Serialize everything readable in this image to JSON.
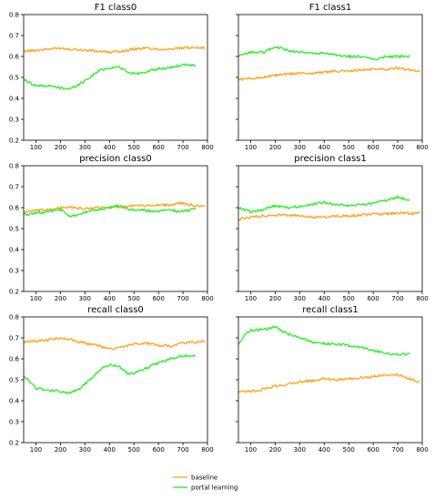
{
  "chart_data": [
    {
      "type": "line",
      "title": "F1 class0",
      "xlim": [
        50,
        800
      ],
      "ylim": [
        0.2,
        0.8
      ],
      "x_ticks": [
        100,
        200,
        300,
        400,
        500,
        600,
        700,
        800
      ],
      "y_ticks": [
        0.2,
        0.3,
        0.4,
        0.5,
        0.6,
        0.7,
        0.8
      ],
      "y_tick_labels_shown": true,
      "series": [
        {
          "name": "baseline",
          "color": "#ffa726",
          "x_start": 50,
          "x_end": 790,
          "points": [
            [
              50,
              0.625
            ],
            [
              100,
              0.63
            ],
            [
              150,
              0.635
            ],
            [
              200,
              0.64
            ],
            [
              250,
              0.635
            ],
            [
              300,
              0.63
            ],
            [
              350,
              0.625
            ],
            [
              400,
              0.62
            ],
            [
              450,
              0.625
            ],
            [
              500,
              0.635
            ],
            [
              550,
              0.64
            ],
            [
              600,
              0.635
            ],
            [
              650,
              0.635
            ],
            [
              700,
              0.64
            ],
            [
              750,
              0.645
            ],
            [
              790,
              0.64
            ]
          ]
        },
        {
          "name": "portal learning",
          "color": "#33ee33",
          "x_start": 50,
          "x_end": 750,
          "points": [
            [
              50,
              0.49
            ],
            [
              100,
              0.46
            ],
            [
              150,
              0.46
            ],
            [
              200,
              0.45
            ],
            [
              240,
              0.445
            ],
            [
              280,
              0.47
            ],
            [
              320,
              0.5
            ],
            [
              360,
              0.535
            ],
            [
              400,
              0.545
            ],
            [
              440,
              0.55
            ],
            [
              480,
              0.52
            ],
            [
              520,
              0.52
            ],
            [
              560,
              0.53
            ],
            [
              600,
              0.54
            ],
            [
              640,
              0.545
            ],
            [
              680,
              0.555
            ],
            [
              720,
              0.56
            ],
            [
              750,
              0.56
            ]
          ]
        }
      ]
    },
    {
      "type": "line",
      "title": "F1 class1",
      "xlim": [
        50,
        800
      ],
      "ylim": [
        0.2,
        0.8
      ],
      "x_ticks": [
        100,
        200,
        300,
        400,
        500,
        600,
        700,
        800
      ],
      "y_ticks": [
        0.2,
        0.3,
        0.4,
        0.5,
        0.6,
        0.7,
        0.8
      ],
      "y_tick_labels_shown": false,
      "series": [
        {
          "name": "baseline",
          "color": "#ffa726",
          "x_start": 50,
          "x_end": 790,
          "points": [
            [
              50,
              0.49
            ],
            [
              100,
              0.495
            ],
            [
              150,
              0.5
            ],
            [
              200,
              0.51
            ],
            [
              250,
              0.515
            ],
            [
              300,
              0.52
            ],
            [
              350,
              0.52
            ],
            [
              400,
              0.525
            ],
            [
              450,
              0.53
            ],
            [
              500,
              0.53
            ],
            [
              550,
              0.535
            ],
            [
              600,
              0.54
            ],
            [
              650,
              0.54
            ],
            [
              700,
              0.545
            ],
            [
              750,
              0.535
            ],
            [
              790,
              0.53
            ]
          ]
        },
        {
          "name": "portal learning",
          "color": "#33ee33",
          "x_start": 50,
          "x_end": 750,
          "points": [
            [
              50,
              0.6
            ],
            [
              100,
              0.62
            ],
            [
              150,
              0.62
            ],
            [
              200,
              0.645
            ],
            [
              250,
              0.63
            ],
            [
              300,
              0.62
            ],
            [
              350,
              0.615
            ],
            [
              400,
              0.615
            ],
            [
              450,
              0.605
            ],
            [
              500,
              0.6
            ],
            [
              550,
              0.6
            ],
            [
              600,
              0.585
            ],
            [
              650,
              0.6
            ],
            [
              700,
              0.6
            ],
            [
              750,
              0.6
            ]
          ]
        }
      ]
    },
    {
      "type": "line",
      "title": "precision class0",
      "xlim": [
        50,
        800
      ],
      "ylim": [
        0.2,
        0.8
      ],
      "x_ticks": [
        100,
        200,
        300,
        400,
        500,
        600,
        700,
        800
      ],
      "y_ticks": [
        0.2,
        0.3,
        0.4,
        0.5,
        0.6,
        0.7,
        0.8
      ],
      "y_tick_labels_shown": true,
      "series": [
        {
          "name": "baseline",
          "color": "#ffa726",
          "x_start": 50,
          "x_end": 790,
          "points": [
            [
              50,
              0.58
            ],
            [
              100,
              0.585
            ],
            [
              150,
              0.59
            ],
            [
              200,
              0.6
            ],
            [
              250,
              0.6
            ],
            [
              300,
              0.595
            ],
            [
              350,
              0.6
            ],
            [
              400,
              0.6
            ],
            [
              450,
              0.605
            ],
            [
              500,
              0.61
            ],
            [
              550,
              0.61
            ],
            [
              600,
              0.61
            ],
            [
              650,
              0.615
            ],
            [
              700,
              0.62
            ],
            [
              750,
              0.61
            ],
            [
              790,
              0.605
            ]
          ]
        },
        {
          "name": "portal learning",
          "color": "#33ee33",
          "x_start": 50,
          "x_end": 750,
          "points": [
            [
              50,
              0.565
            ],
            [
              100,
              0.575
            ],
            [
              150,
              0.58
            ],
            [
              200,
              0.59
            ],
            [
              240,
              0.555
            ],
            [
              280,
              0.57
            ],
            [
              320,
              0.585
            ],
            [
              360,
              0.59
            ],
            [
              400,
              0.6
            ],
            [
              440,
              0.61
            ],
            [
              480,
              0.59
            ],
            [
              520,
              0.59
            ],
            [
              560,
              0.585
            ],
            [
              600,
              0.58
            ],
            [
              640,
              0.595
            ],
            [
              680,
              0.58
            ],
            [
              720,
              0.585
            ],
            [
              750,
              0.595
            ]
          ]
        }
      ]
    },
    {
      "type": "line",
      "title": "precision class1",
      "xlim": [
        50,
        800
      ],
      "ylim": [
        0.2,
        0.8
      ],
      "x_ticks": [
        100,
        200,
        300,
        400,
        500,
        600,
        700,
        800
      ],
      "y_ticks": [
        0.2,
        0.3,
        0.4,
        0.5,
        0.6,
        0.7,
        0.8
      ],
      "y_tick_labels_shown": false,
      "series": [
        {
          "name": "baseline",
          "color": "#ffa726",
          "x_start": 50,
          "x_end": 790,
          "points": [
            [
              50,
              0.545
            ],
            [
              100,
              0.555
            ],
            [
              150,
              0.56
            ],
            [
              200,
              0.565
            ],
            [
              250,
              0.565
            ],
            [
              300,
              0.56
            ],
            [
              350,
              0.555
            ],
            [
              400,
              0.555
            ],
            [
              450,
              0.56
            ],
            [
              500,
              0.56
            ],
            [
              550,
              0.565
            ],
            [
              600,
              0.57
            ],
            [
              650,
              0.57
            ],
            [
              700,
              0.575
            ],
            [
              750,
              0.57
            ],
            [
              790,
              0.575
            ]
          ]
        },
        {
          "name": "portal learning",
          "color": "#33ee33",
          "x_start": 50,
          "x_end": 750,
          "points": [
            [
              50,
              0.6
            ],
            [
              100,
              0.58
            ],
            [
              150,
              0.59
            ],
            [
              200,
              0.61
            ],
            [
              250,
              0.6
            ],
            [
              300,
              0.605
            ],
            [
              350,
              0.615
            ],
            [
              400,
              0.625
            ],
            [
              450,
              0.615
            ],
            [
              500,
              0.61
            ],
            [
              550,
              0.615
            ],
            [
              600,
              0.62
            ],
            [
              650,
              0.635
            ],
            [
              700,
              0.65
            ],
            [
              750,
              0.635
            ]
          ]
        }
      ]
    },
    {
      "type": "line",
      "title": "recall class0",
      "xlim": [
        50,
        800
      ],
      "ylim": [
        0.2,
        0.8
      ],
      "x_ticks": [
        100,
        200,
        300,
        400,
        500,
        600,
        700,
        800
      ],
      "y_ticks": [
        0.2,
        0.3,
        0.4,
        0.5,
        0.6,
        0.7,
        0.8
      ],
      "y_tick_labels_shown": true,
      "series": [
        {
          "name": "baseline",
          "color": "#ffa726",
          "x_start": 50,
          "x_end": 790,
          "points": [
            [
              50,
              0.68
            ],
            [
              100,
              0.685
            ],
            [
              150,
              0.69
            ],
            [
              200,
              0.7
            ],
            [
              250,
              0.69
            ],
            [
              300,
              0.675
            ],
            [
              350,
              0.665
            ],
            [
              400,
              0.645
            ],
            [
              450,
              0.655
            ],
            [
              500,
              0.67
            ],
            [
              550,
              0.675
            ],
            [
              600,
              0.665
            ],
            [
              650,
              0.66
            ],
            [
              700,
              0.675
            ],
            [
              750,
              0.68
            ],
            [
              790,
              0.685
            ]
          ]
        },
        {
          "name": "portal learning",
          "color": "#33ee33",
          "x_start": 50,
          "x_end": 750,
          "points": [
            [
              50,
              0.52
            ],
            [
              100,
              0.46
            ],
            [
              150,
              0.45
            ],
            [
              200,
              0.445
            ],
            [
              240,
              0.435
            ],
            [
              280,
              0.46
            ],
            [
              320,
              0.5
            ],
            [
              360,
              0.55
            ],
            [
              400,
              0.57
            ],
            [
              440,
              0.565
            ],
            [
              480,
              0.525
            ],
            [
              520,
              0.54
            ],
            [
              560,
              0.56
            ],
            [
              600,
              0.58
            ],
            [
              640,
              0.595
            ],
            [
              680,
              0.61
            ],
            [
              720,
              0.615
            ],
            [
              750,
              0.615
            ]
          ]
        }
      ]
    },
    {
      "type": "line",
      "title": "recall class1",
      "xlim": [
        50,
        800
      ],
      "ylim": [
        0.2,
        0.8
      ],
      "x_ticks": [
        100,
        200,
        300,
        400,
        500,
        600,
        700,
        800
      ],
      "y_ticks": [
        0.2,
        0.3,
        0.4,
        0.5,
        0.6,
        0.7,
        0.8
      ],
      "y_tick_labels_shown": false,
      "series": [
        {
          "name": "baseline",
          "color": "#ffa726",
          "x_start": 50,
          "x_end": 790,
          "points": [
            [
              50,
              0.44
            ],
            [
              100,
              0.445
            ],
            [
              150,
              0.455
            ],
            [
              200,
              0.47
            ],
            [
              250,
              0.48
            ],
            [
              300,
              0.49
            ],
            [
              350,
              0.495
            ],
            [
              400,
              0.505
            ],
            [
              450,
              0.5
            ],
            [
              500,
              0.505
            ],
            [
              550,
              0.51
            ],
            [
              600,
              0.515
            ],
            [
              650,
              0.52
            ],
            [
              700,
              0.525
            ],
            [
              750,
              0.505
            ],
            [
              790,
              0.49
            ]
          ]
        },
        {
          "name": "portal learning",
          "color": "#33ee33",
          "x_start": 50,
          "x_end": 750,
          "points": [
            [
              50,
              0.67
            ],
            [
              80,
              0.72
            ],
            [
              100,
              0.735
            ],
            [
              150,
              0.74
            ],
            [
              200,
              0.75
            ],
            [
              250,
              0.72
            ],
            [
              300,
              0.7
            ],
            [
              350,
              0.68
            ],
            [
              400,
              0.675
            ],
            [
              450,
              0.67
            ],
            [
              500,
              0.665
            ],
            [
              550,
              0.655
            ],
            [
              600,
              0.64
            ],
            [
              650,
              0.625
            ],
            [
              700,
              0.62
            ],
            [
              750,
              0.625
            ]
          ]
        }
      ]
    }
  ],
  "legend": {
    "placement": "bottom-center",
    "entries": [
      {
        "label": "baseline",
        "color": "#ffa726"
      },
      {
        "label": "portal learning",
        "color": "#33ee33"
      }
    ]
  }
}
